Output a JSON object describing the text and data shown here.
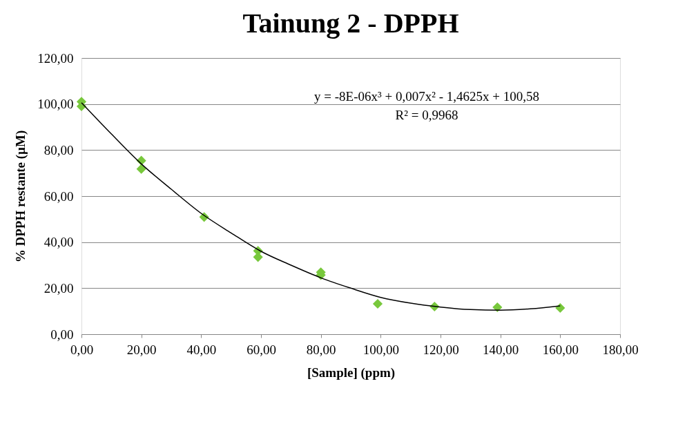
{
  "chart_data": {
    "type": "scatter",
    "title": "Tainung 2 - DPPH",
    "xlabel": "[Sample] (ppm)",
    "ylabel": "% DPPH restante (µM)",
    "xlim": [
      0,
      180
    ],
    "ylim": [
      0,
      120
    ],
    "xticks": [
      {
        "value": 0,
        "label": "0,00"
      },
      {
        "value": 20,
        "label": "20,00"
      },
      {
        "value": 40,
        "label": "40,00"
      },
      {
        "value": 60,
        "label": "60,00"
      },
      {
        "value": 80,
        "label": "80,00"
      },
      {
        "value": 100,
        "label": "100,00"
      },
      {
        "value": 120,
        "label": "120,00"
      },
      {
        "value": 140,
        "label": "140,00"
      },
      {
        "value": 160,
        "label": "160,00"
      },
      {
        "value": 180,
        "label": "180,00"
      }
    ],
    "yticks": [
      {
        "value": 0,
        "label": "0,00"
      },
      {
        "value": 20,
        "label": "20,00"
      },
      {
        "value": 40,
        "label": "40,00"
      },
      {
        "value": 60,
        "label": "60,00"
      },
      {
        "value": 80,
        "label": "80,00"
      },
      {
        "value": 100,
        "label": "100,00"
      },
      {
        "value": 120,
        "label": "120,00"
      }
    ],
    "grid": "y",
    "marker": "diamond",
    "series": [
      {
        "color": "#78c83c",
        "x": [
          0,
          0,
          20,
          20,
          41,
          59,
          59,
          80,
          80,
          99,
          118,
          139,
          160
        ],
        "values": [
          101,
          99,
          75.4,
          71.8,
          50.9,
          36.2,
          33.5,
          26.9,
          25.7,
          13.2,
          12.0,
          11.7,
          11.4
        ]
      },
      {
        "type": "line",
        "color": "#000000",
        "marker": "none",
        "x": [
          0,
          10,
          20,
          30,
          40,
          50,
          60,
          70,
          80,
          90,
          100,
          110,
          120,
          130,
          140,
          150,
          160
        ],
        "values": [
          100.6,
          87,
          74,
          63,
          52.5,
          44,
          36,
          30,
          24.5,
          20,
          16,
          13.5,
          11.8,
          10.7,
          10.4,
          11,
          12.3
        ]
      }
    ],
    "annotations": [
      "y = -8E-06x³ + 0,007x² - 1,4625x + 100,58",
      "R² = 0,9968"
    ]
  }
}
